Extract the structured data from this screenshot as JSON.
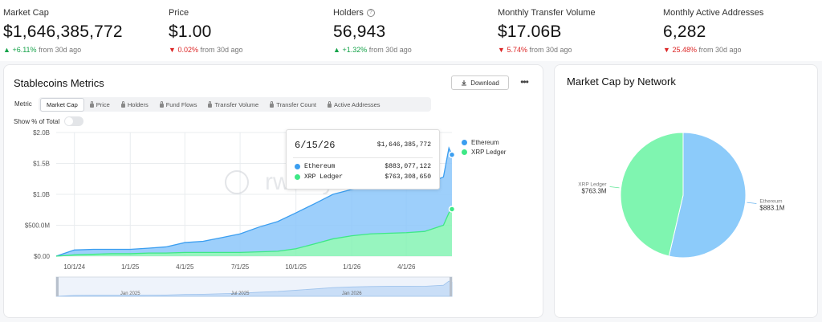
{
  "stats": [
    {
      "label": "Market Cap",
      "value": "$1,646,385,772",
      "direction": "up",
      "change": "+6.11%",
      "period": "from 30d ago"
    },
    {
      "label": "Price",
      "value": "$1.00",
      "direction": "down",
      "change": "0.02%",
      "period": "from 30d ago"
    },
    {
      "label": "Holders",
      "value": "56,943",
      "direction": "up",
      "change": "+1.32%",
      "period": "from 30d ago",
      "help_icon": "?"
    },
    {
      "label": "Monthly Transfer Volume",
      "value": "$17.06B",
      "direction": "down",
      "change": "5.74%",
      "period": "from 30d ago"
    },
    {
      "label": "Monthly Active Addresses",
      "value": "6,282",
      "direction": "down",
      "change": "25.48%",
      "period": "from 30d ago"
    }
  ],
  "arrows": {
    "up": "▲",
    "down": "▼"
  },
  "metrics_card": {
    "title": "Stablecoins Metrics",
    "download_label": "Download",
    "more_label": "•••",
    "metric_label": "Metric",
    "tabs": [
      {
        "label": "Market Cap",
        "active": true,
        "locked": false
      },
      {
        "label": "Price",
        "active": false,
        "locked": true
      },
      {
        "label": "Holders",
        "active": false,
        "locked": true
      },
      {
        "label": "Fund Flows",
        "active": false,
        "locked": true
      },
      {
        "label": "Transfer Volume",
        "active": false,
        "locked": true
      },
      {
        "label": "Transfer Count",
        "active": false,
        "locked": true
      },
      {
        "label": "Active Addresses",
        "active": false,
        "locked": true
      }
    ],
    "toggle_label": "Show % of Total",
    "watermark": "rwa.xyz"
  },
  "tooltip": {
    "date": "6/15/26",
    "total": "$1,646,385,772",
    "rows": [
      {
        "name": "Ethereum",
        "value": "$883,077,122"
      },
      {
        "name": "XRP Ledger",
        "value": "$763,308,650"
      }
    ]
  },
  "colors": {
    "ethereum": "#3b9ef0",
    "xrp": "#3ee886",
    "ethereum_fill": "#8cc7fa",
    "xrp_fill": "#85f3b4",
    "up": "#16a34a",
    "down": "#dc2626"
  },
  "chart_data": [
    {
      "type": "area",
      "stacked": true,
      "x": [
        "2024-09-01",
        "2024-10-01",
        "2024-11-01",
        "2024-12-01",
        "2025-01-01",
        "2025-02-01",
        "2025-03-01",
        "2025-04-01",
        "2025-05-01",
        "2025-06-01",
        "2025-07-01",
        "2025-08-01",
        "2025-09-01",
        "2025-10-01",
        "2025-11-01",
        "2025-12-01",
        "2026-01-01",
        "2026-02-01",
        "2026-03-01",
        "2026-04-01",
        "2026-05-01",
        "2026-06-01",
        "2026-06-10",
        "2026-06-15"
      ],
      "series": [
        {
          "name": "XRP Ledger",
          "values": [
            0,
            0.02,
            0.03,
            0.04,
            0.04,
            0.05,
            0.05,
            0.06,
            0.06,
            0.06,
            0.06,
            0.07,
            0.08,
            0.12,
            0.2,
            0.28,
            0.33,
            0.36,
            0.37,
            0.38,
            0.4,
            0.5,
            0.7,
            0.76
          ]
        },
        {
          "name": "Ethereum",
          "values": [
            0,
            0.08,
            0.08,
            0.07,
            0.07,
            0.08,
            0.1,
            0.16,
            0.18,
            0.24,
            0.3,
            0.4,
            0.48,
            0.58,
            0.65,
            0.72,
            0.75,
            0.77,
            0.78,
            0.77,
            0.76,
            0.78,
            1.05,
            0.88
          ]
        }
      ],
      "xticks": [
        "10/1/24",
        "1/1/25",
        "4/1/25",
        "7/1/25",
        "10/1/25",
        "1/1/26",
        "4/1/26"
      ],
      "yticks": [
        "$0.00",
        "$500.0M",
        "$1.0B",
        "$1.5B",
        "$2.0B"
      ],
      "ylim": [
        0,
        2.0
      ],
      "y_unit": "B",
      "legend": {
        "position": "right",
        "items": [
          "Ethereum",
          "XRP Ledger"
        ]
      },
      "navigator_labels": [
        "Jan 2025",
        "Jul 2025",
        "Jan 2026"
      ],
      "grid": true
    },
    {
      "type": "pie",
      "title": "Market Cap by Network",
      "labels": [
        "Ethereum",
        "XRP Ledger"
      ],
      "values": [
        883.1,
        763.3
      ],
      "value_labels": [
        "$883.1M",
        "$763.3M"
      ]
    }
  ]
}
